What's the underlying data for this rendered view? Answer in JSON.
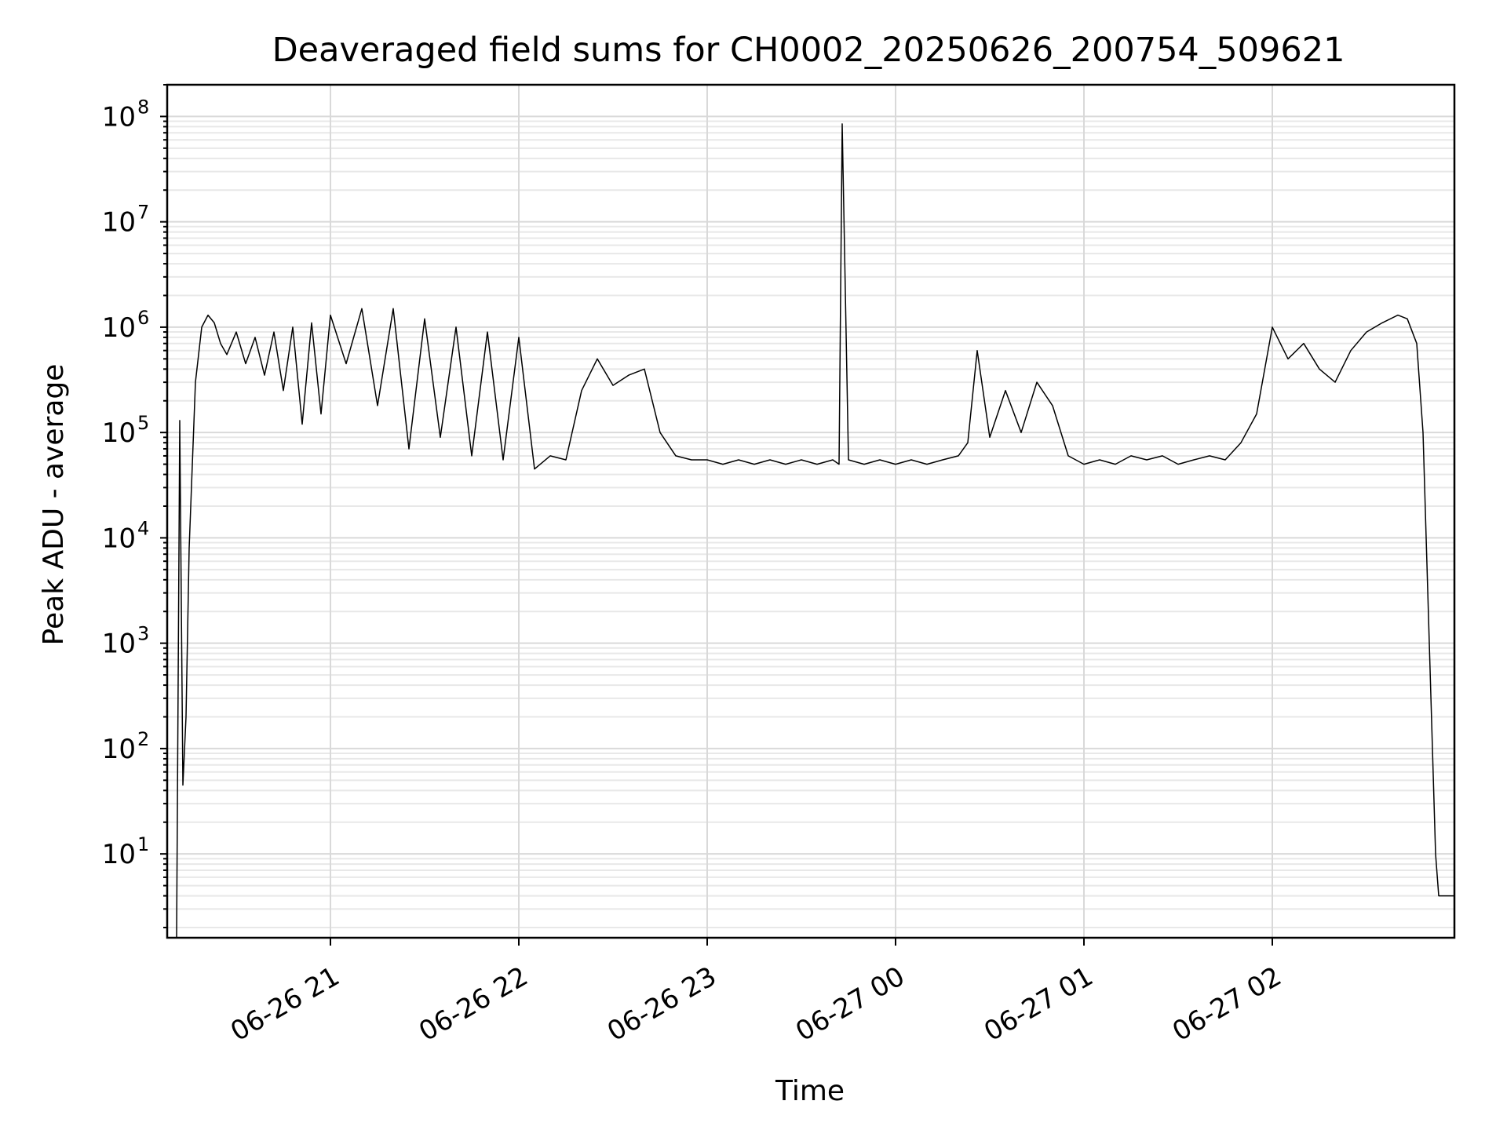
{
  "chart_data": {
    "type": "line",
    "title": "Deaveraged field sums for CH0002_20250626_200754_509621",
    "xlabel": "Time",
    "ylabel": "Peak ADU - average",
    "yscale": "log",
    "xlim": [
      "2025-06-26 20:08",
      "2025-06-27 02:58"
    ],
    "ylim": [
      1.6,
      200000000
    ],
    "grid": true,
    "x_ticks": [
      {
        "t": "2025-06-26 21:00",
        "label": "06-26 21"
      },
      {
        "t": "2025-06-26 22:00",
        "label": "06-26 22"
      },
      {
        "t": "2025-06-26 23:00",
        "label": "06-26 23"
      },
      {
        "t": "2025-06-27 00:00",
        "label": "06-27 00"
      },
      {
        "t": "2025-06-27 01:00",
        "label": "06-27 01"
      },
      {
        "t": "2025-06-27 02:00",
        "label": "06-27 02"
      }
    ],
    "y_ticks": [
      {
        "value": 10,
        "base": "10",
        "exp": "1"
      },
      {
        "value": 100,
        "base": "10",
        "exp": "2"
      },
      {
        "value": 1000,
        "base": "10",
        "exp": "3"
      },
      {
        "value": 10000,
        "base": "10",
        "exp": "4"
      },
      {
        "value": 100000,
        "base": "10",
        "exp": "5"
      },
      {
        "value": 1000000,
        "base": "10",
        "exp": "6"
      },
      {
        "value": 10000000,
        "base": "10",
        "exp": "7"
      },
      {
        "value": 100000000,
        "base": "10",
        "exp": "8"
      }
    ],
    "series": [
      {
        "color": "#000000",
        "x": [
          "2025-06-26 20:11",
          "2025-06-26 20:12",
          "2025-06-26 20:13",
          "2025-06-26 20:14",
          "2025-06-26 20:15",
          "2025-06-26 20:17",
          "2025-06-26 20:19",
          "2025-06-26 20:21",
          "2025-06-26 20:23",
          "2025-06-26 20:25",
          "2025-06-26 20:27",
          "2025-06-26 20:30",
          "2025-06-26 20:33",
          "2025-06-26 20:36",
          "2025-06-26 20:39",
          "2025-06-26 20:42",
          "2025-06-26 20:45",
          "2025-06-26 20:48",
          "2025-06-26 20:51",
          "2025-06-26 20:54",
          "2025-06-26 20:57",
          "2025-06-26 21:00",
          "2025-06-26 21:05",
          "2025-06-26 21:10",
          "2025-06-26 21:15",
          "2025-06-26 21:20",
          "2025-06-26 21:25",
          "2025-06-26 21:30",
          "2025-06-26 21:35",
          "2025-06-26 21:40",
          "2025-06-26 21:45",
          "2025-06-26 21:50",
          "2025-06-26 21:55",
          "2025-06-26 22:00",
          "2025-06-26 22:05",
          "2025-06-26 22:10",
          "2025-06-26 22:15",
          "2025-06-26 22:20",
          "2025-06-26 22:25",
          "2025-06-26 22:30",
          "2025-06-26 22:35",
          "2025-06-26 22:40",
          "2025-06-26 22:45",
          "2025-06-26 22:50",
          "2025-06-26 22:55",
          "2025-06-26 23:00",
          "2025-06-26 23:05",
          "2025-06-26 23:10",
          "2025-06-26 23:15",
          "2025-06-26 23:20",
          "2025-06-26 23:25",
          "2025-06-26 23:30",
          "2025-06-26 23:35",
          "2025-06-26 23:40",
          "2025-06-26 23:42",
          "2025-06-26 23:43",
          "2025-06-26 23:45",
          "2025-06-26 23:50",
          "2025-06-26 23:55",
          "2025-06-27 00:00",
          "2025-06-27 00:05",
          "2025-06-27 00:10",
          "2025-06-27 00:15",
          "2025-06-27 00:20",
          "2025-06-27 00:23",
          "2025-06-27 00:26",
          "2025-06-27 00:30",
          "2025-06-27 00:35",
          "2025-06-27 00:40",
          "2025-06-27 00:45",
          "2025-06-27 00:50",
          "2025-06-27 00:55",
          "2025-06-27 01:00",
          "2025-06-27 01:05",
          "2025-06-27 01:10",
          "2025-06-27 01:15",
          "2025-06-27 01:20",
          "2025-06-27 01:25",
          "2025-06-27 01:30",
          "2025-06-27 01:35",
          "2025-06-27 01:40",
          "2025-06-27 01:45",
          "2025-06-27 01:50",
          "2025-06-27 01:55",
          "2025-06-27 02:00",
          "2025-06-27 02:05",
          "2025-06-27 02:10",
          "2025-06-27 02:15",
          "2025-06-27 02:20",
          "2025-06-27 02:25",
          "2025-06-27 02:30",
          "2025-06-27 02:35",
          "2025-06-27 02:40",
          "2025-06-27 02:43",
          "2025-06-27 02:46",
          "2025-06-27 02:48",
          "2025-06-27 02:50",
          "2025-06-27 02:52",
          "2025-06-27 02:53",
          "2025-06-27 02:55",
          "2025-06-27 02:58"
        ],
        "y": [
          1.6,
          130000,
          45,
          200,
          8000,
          300000,
          1000000,
          1300000,
          1100000,
          700000,
          550000,
          900000,
          450000,
          800000,
          350000,
          900000,
          250000,
          1000000,
          120000,
          1100000,
          150000,
          1300000,
          450000,
          1500000,
          180000,
          1500000,
          70000,
          1200000,
          90000,
          1000000,
          60000,
          900000,
          55000,
          800000,
          45000,
          60000,
          55000,
          250000,
          500000,
          280000,
          350000,
          400000,
          100000,
          60000,
          55000,
          55000,
          50000,
          55000,
          50000,
          55000,
          50000,
          55000,
          50000,
          55000,
          50000,
          85000000,
          55000,
          50000,
          55000,
          50000,
          55000,
          50000,
          55000,
          60000,
          80000,
          600000,
          90000,
          250000,
          100000,
          300000,
          180000,
          60000,
          50000,
          55000,
          50000,
          60000,
          55000,
          60000,
          50000,
          55000,
          60000,
          55000,
          80000,
          150000,
          1000000,
          500000,
          700000,
          400000,
          300000,
          600000,
          900000,
          1100000,
          1300000,
          1200000,
          700000,
          100000,
          1000,
          10,
          4,
          4,
          4
        ]
      }
    ]
  }
}
